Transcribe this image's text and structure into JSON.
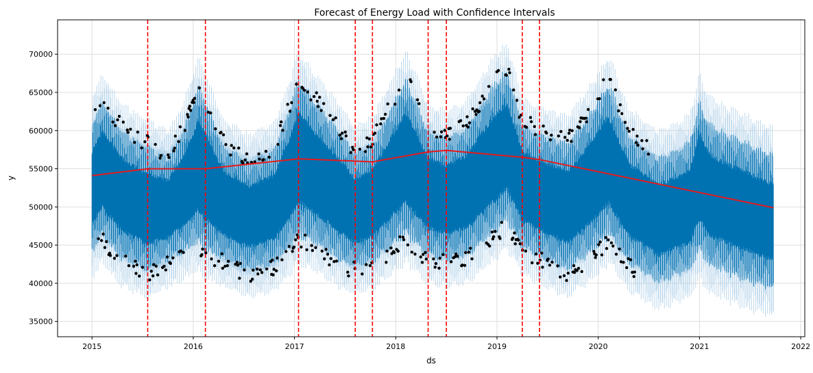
{
  "chart_data": {
    "type": "line",
    "title": "Forecast of Energy Load with Confidence Intervals",
    "xlabel": "ds",
    "ylabel": "y",
    "xlim": [
      2014.66,
      2022.04
    ],
    "ylim": [
      33000,
      74500
    ],
    "grid": true,
    "x_ticks": [
      2015,
      2016,
      2017,
      2018,
      2019,
      2020,
      2021,
      2022
    ],
    "x_tick_labels": [
      "2015",
      "2016",
      "2017",
      "2018",
      "2019",
      "2020",
      "2021",
      "2022"
    ],
    "y_ticks": [
      35000,
      40000,
      45000,
      50000,
      55000,
      60000,
      65000,
      70000
    ],
    "y_tick_labels": [
      "35000",
      "40000",
      "45000",
      "50000",
      "55000",
      "60000",
      "65000",
      "70000"
    ],
    "colors": {
      "forecast": "#0072b2",
      "interval": "#a9cde6",
      "observed": "#000000",
      "trend": "#e41a1c",
      "changepoint": "#ff0000",
      "grid": "#dddddd"
    },
    "history_end": 2020.5,
    "forecast_end": 2021.73,
    "trend": {
      "name": "trend",
      "x": [
        2015.0,
        2015.55,
        2016.12,
        2017.04,
        2017.6,
        2017.77,
        2018.32,
        2018.5,
        2019.25,
        2019.42,
        2021.73
      ],
      "values": [
        54100,
        55000,
        55000,
        56300,
        56000,
        55900,
        57200,
        57400,
        56500,
        56200,
        49900
      ]
    },
    "changepoints": [
      2015.55,
      2016.12,
      2017.04,
      2017.6,
      2017.77,
      2018.32,
      2018.5,
      2019.25,
      2019.42
    ],
    "seasonality_bands": [
      {
        "x": [
          2015.0,
          2015.1,
          2015.3,
          2015.55,
          2015.75,
          2015.9,
          2016.05,
          2016.12,
          2016.3,
          2016.55,
          2016.8,
          2016.95,
          2017.04,
          2017.2,
          2017.5,
          2017.6,
          2017.77,
          2017.95,
          2018.1,
          2018.32,
          2018.5,
          2018.7,
          2018.95,
          2019.1,
          2019.25,
          2019.42,
          2019.7,
          2019.95,
          2020.1,
          2020.3,
          2020.6,
          2020.9,
          2021.0,
          2021.1,
          2021.4,
          2021.73
        ],
        "upper": [
          61000,
          64000,
          60000,
          58000,
          56500,
          60000,
          66000,
          64000,
          58000,
          56000,
          57500,
          63000,
          67000,
          64000,
          59000,
          57000,
          58500,
          63000,
          67000,
          60000,
          59000,
          60500,
          66000,
          68000,
          61000,
          59500,
          58500,
          63000,
          66500,
          59500,
          56500,
          58500,
          64000,
          61000,
          59000,
          57000
        ],
        "lower": [
          44000,
          46000,
          43000,
          41500,
          43000,
          44000,
          45000,
          44000,
          43000,
          41500,
          42500,
          44500,
          46000,
          45000,
          42500,
          42000,
          42500,
          44500,
          46000,
          43500,
          43000,
          43500,
          46000,
          48000,
          44500,
          43500,
          41500,
          44000,
          46000,
          42500,
          40000,
          41500,
          44000,
          42000,
          40500,
          39000
        ]
      }
    ]
  }
}
